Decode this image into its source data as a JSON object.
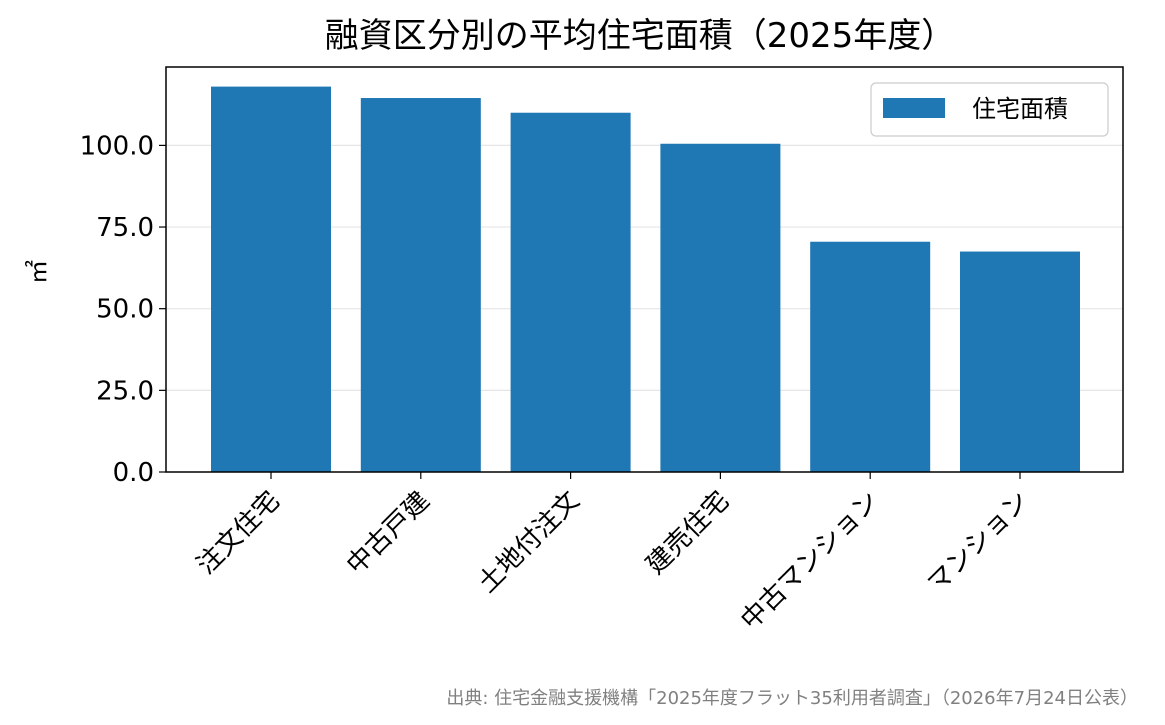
{
  "chart_data": {
    "type": "bar",
    "title": "融資区分別の平均住宅面積（2025年度）",
    "ylabel": "㎡",
    "xlabel": "",
    "categories": [
      "注文住宅",
      "中古戸建",
      "土地付注文",
      "建売住宅",
      "中古マンション",
      "マンション"
    ],
    "series": [
      {
        "name": "住宅面積",
        "values": [
          118.0,
          114.5,
          110.0,
          100.5,
          70.5,
          67.5
        ],
        "color": "#1f77b4"
      }
    ],
    "ylim": [
      0,
      124
    ],
    "yticks": [
      "0.0",
      "25.0",
      "50.0",
      "75.0",
      "100.0"
    ],
    "grid": "horizontal",
    "legend": "top-right",
    "source_note": "出典: 住宅金融支援機構「2025年度フラット35利用者調査」（2026年7月24日公表）"
  }
}
